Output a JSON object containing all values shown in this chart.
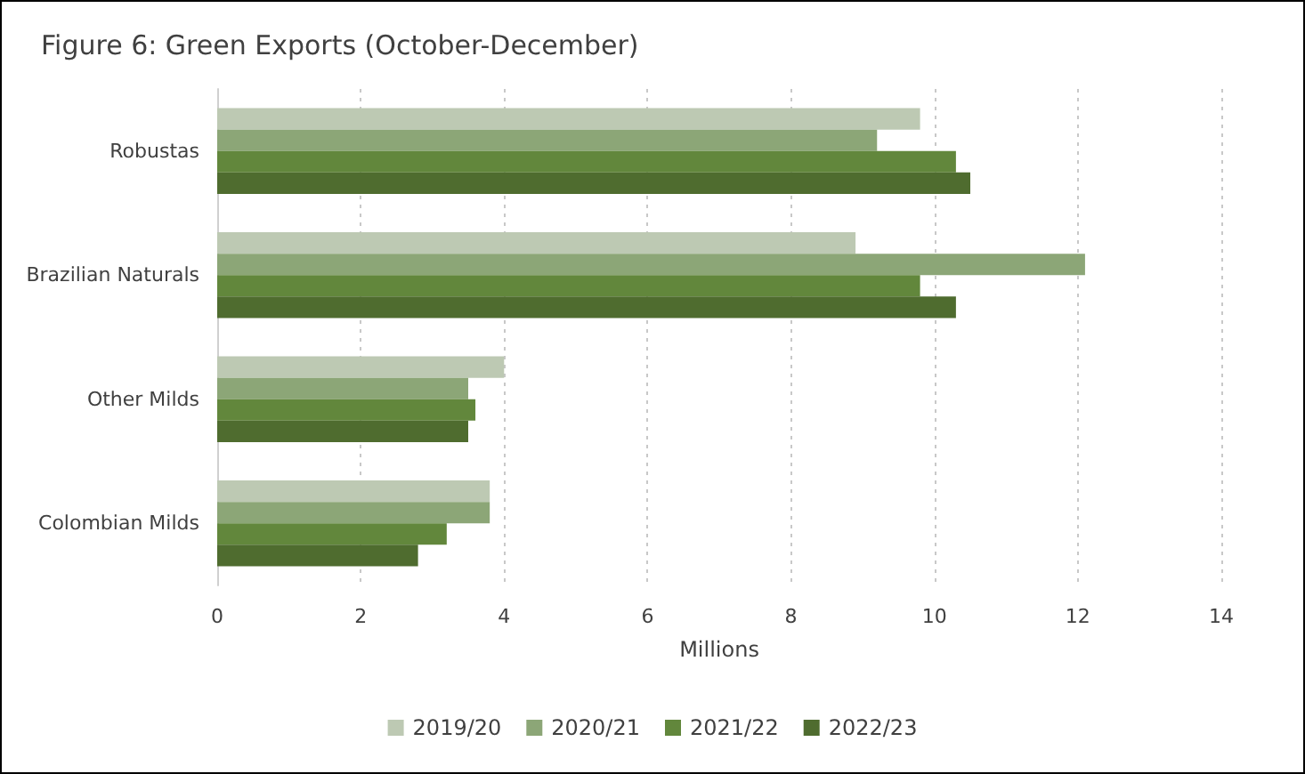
{
  "chart_data": {
    "type": "bar",
    "orientation": "horizontal",
    "title": "Figure 6: Green Exports (October-December)",
    "xlabel": "Millions",
    "categories": [
      "Robustas",
      "Brazilian Naturals",
      "Other Milds",
      "Colombian Milds"
    ],
    "series": [
      {
        "name": "2019/20",
        "color": "#bdc9b3",
        "values": [
          9.8,
          8.9,
          4.0,
          3.8
        ]
      },
      {
        "name": "2020/21",
        "color": "#8ca677",
        "values": [
          9.2,
          12.1,
          3.5,
          3.8
        ]
      },
      {
        "name": "2021/22",
        "color": "#62873c",
        "values": [
          10.3,
          9.8,
          3.6,
          3.2
        ]
      },
      {
        "name": "2022/23",
        "color": "#4f6c2f",
        "values": [
          10.5,
          10.3,
          3.5,
          2.8
        ]
      }
    ],
    "xlim": [
      0,
      14
    ],
    "xticks": [
      0,
      2,
      4,
      6,
      8,
      10,
      12,
      14
    ],
    "grid": "x",
    "legend": "bottom"
  }
}
